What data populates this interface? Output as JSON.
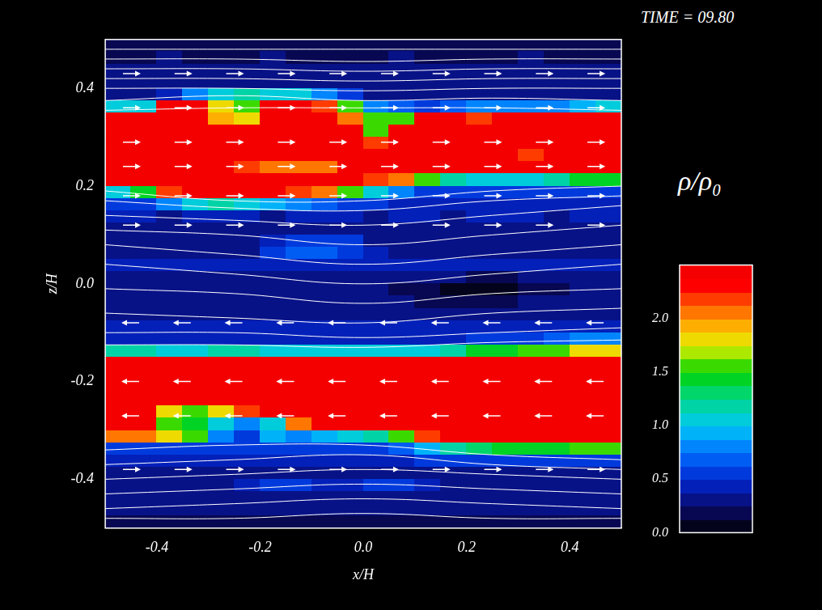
{
  "chart_data": {
    "type": "heatmap",
    "title": "TIME = 09.80",
    "x_label": "x/H",
    "y_label": "z/H",
    "xlim": [
      -0.5,
      0.5
    ],
    "ylim": [
      -0.5,
      0.5
    ],
    "xticks": [
      -0.4,
      -0.2,
      {
        "value": 0,
        "label": "0.0"
      },
      0.2,
      0.4
    ],
    "yticks": [
      -0.4,
      -0.2,
      {
        "value": 0,
        "label": "0.0"
      },
      0.2,
      0.4
    ],
    "grid": false,
    "colorbar": {
      "label": "ρ/ρ₀",
      "range": [
        0,
        2.5
      ],
      "ticks": [
        {
          "value": 0,
          "label": "0.0"
        },
        0.5,
        {
          "value": 1,
          "label": "1.0"
        },
        1.5,
        {
          "value": 2,
          "label": "2.0"
        }
      ]
    },
    "density": {
      "x": [
        -0.475,
        -0.425,
        -0.375,
        -0.325,
        -0.275,
        -0.225,
        -0.175,
        -0.125,
        -0.075,
        -0.025,
        0.025,
        0.075,
        0.125,
        0.175,
        0.225,
        0.275,
        0.325,
        0.375,
        0.425,
        0.475
      ],
      "z": [
        0.4875,
        0.4625,
        0.4375,
        0.4125,
        0.3875,
        0.3625,
        0.3375,
        0.3125,
        0.2875,
        0.2625,
        0.2375,
        0.2125,
        0.1875,
        0.1625,
        0.1375,
        0.1125,
        0.0875,
        0.0625,
        0.0375,
        0.0125,
        -0.0125,
        -0.0375,
        -0.0625,
        -0.0875,
        -0.1125,
        -0.1375,
        -0.1625,
        -0.1875,
        -0.2125,
        -0.2375,
        -0.2625,
        -0.2875,
        -0.3125,
        -0.3375,
        -0.3625,
        -0.3875,
        -0.4125,
        -0.4375,
        -0.4625,
        -0.4875
      ],
      "values": [
        [
          0.2,
          0.2,
          0.2,
          0.2,
          0.2,
          0.2,
          0.2,
          0.2,
          0.2,
          0.2,
          0.2,
          0.2,
          0.2,
          0.2,
          0.2,
          0.2,
          0.2,
          0.2,
          0.2,
          0.2
        ],
        [
          0.2,
          0.2,
          0.3,
          0.2,
          0.2,
          0.2,
          0.3,
          0.2,
          0.2,
          0.2,
          0.2,
          0.3,
          0.2,
          0.2,
          0.2,
          0.2,
          0.3,
          0.2,
          0.2,
          0.2
        ],
        [
          0.25,
          0.25,
          0.25,
          0.25,
          0.3,
          0.25,
          0.25,
          0.25,
          0.25,
          0.25,
          0.25,
          0.25,
          0.3,
          0.25,
          0.25,
          0.25,
          0.25,
          0.25,
          0.25,
          0.25
        ],
        [
          0.3,
          0.3,
          0.3,
          0.3,
          0.3,
          0.3,
          0.3,
          0.3,
          0.3,
          0.3,
          0.3,
          0.3,
          0.3,
          0.3,
          0.3,
          0.3,
          0.3,
          0.3,
          0.3,
          0.3
        ],
        [
          0.3,
          0.3,
          0.4,
          0.8,
          1.0,
          1.2,
          1.0,
          1.0,
          0.8,
          0.5,
          0.3,
          0.3,
          0.3,
          0.3,
          0.3,
          0.3,
          0.3,
          0.3,
          0.3,
          0.3
        ],
        [
          1.0,
          1.0,
          2.4,
          2.4,
          1.8,
          1.6,
          2.4,
          2.4,
          2.2,
          1.6,
          0.8,
          0.7,
          0.6,
          0.7,
          0.8,
          0.8,
          0.8,
          0.8,
          0.9,
          1.0
        ],
        [
          2.4,
          2.4,
          2.4,
          2.4,
          1.9,
          1.8,
          2.4,
          2.4,
          2.4,
          2.0,
          1.5,
          1.6,
          2.4,
          2.4,
          2.2,
          2.4,
          2.4,
          2.4,
          2.4,
          2.4
        ],
        [
          2.4,
          2.4,
          2.4,
          2.4,
          2.4,
          2.4,
          2.4,
          2.4,
          2.4,
          2.4,
          1.6,
          2.4,
          2.4,
          2.4,
          2.4,
          2.4,
          2.4,
          2.4,
          2.4,
          2.4
        ],
        [
          2.4,
          2.4,
          2.4,
          2.4,
          2.4,
          2.4,
          2.4,
          2.4,
          2.4,
          2.4,
          2.2,
          2.4,
          2.4,
          2.4,
          2.4,
          2.4,
          2.4,
          2.4,
          2.4,
          2.4
        ],
        [
          2.4,
          2.4,
          2.4,
          2.4,
          2.4,
          2.4,
          2.4,
          2.4,
          2.4,
          2.4,
          2.4,
          2.4,
          2.4,
          2.4,
          2.4,
          2.4,
          2.2,
          2.4,
          2.4,
          2.4
        ],
        [
          2.4,
          2.4,
          2.4,
          2.4,
          2.4,
          2.2,
          2.1,
          2.1,
          2.1,
          2.4,
          2.4,
          2.4,
          2.4,
          2.4,
          2.4,
          2.4,
          2.4,
          2.4,
          2.4,
          2.4
        ],
        [
          2.4,
          2.4,
          2.4,
          2.4,
          2.4,
          2.4,
          2.4,
          2.4,
          2.4,
          2.4,
          2.2,
          2.0,
          1.6,
          1.2,
          1.0,
          1.0,
          1.0,
          1.2,
          1.4,
          1.4
        ],
        [
          1.0,
          1.4,
          2.2,
          2.4,
          2.4,
          2.4,
          2.4,
          2.2,
          2.0,
          1.5,
          1.0,
          0.8,
          0.6,
          0.5,
          0.5,
          0.5,
          0.5,
          0.5,
          0.5,
          0.6
        ],
        [
          0.5,
          0.5,
          0.8,
          1.0,
          1.2,
          1.0,
          0.9,
          0.8,
          0.7,
          0.6,
          0.5,
          0.4,
          0.4,
          0.4,
          0.4,
          0.4,
          0.4,
          0.4,
          0.4,
          0.4
        ],
        [
          0.4,
          0.4,
          0.3,
          0.4,
          0.4,
          0.4,
          0.3,
          0.4,
          0.4,
          0.4,
          0.3,
          0.4,
          0.4,
          0.3,
          0.4,
          0.4,
          0.4,
          0.3,
          0.4,
          0.4
        ],
        [
          0.35,
          0.35,
          0.35,
          0.35,
          0.35,
          0.35,
          0.35,
          0.35,
          0.35,
          0.35,
          0.35,
          0.35,
          0.35,
          0.35,
          0.35,
          0.35,
          0.35,
          0.35,
          0.35,
          0.35
        ],
        [
          0.3,
          0.3,
          0.3,
          0.3,
          0.3,
          0.3,
          0.4,
          0.5,
          0.6,
          0.5,
          0.3,
          0.3,
          0.3,
          0.3,
          0.3,
          0.3,
          0.3,
          0.3,
          0.3,
          0.3
        ],
        [
          0.3,
          0.3,
          0.3,
          0.3,
          0.3,
          0.3,
          0.5,
          0.7,
          0.7,
          0.6,
          0.4,
          0.3,
          0.3,
          0.3,
          0.3,
          0.3,
          0.3,
          0.3,
          0.3,
          0.3
        ],
        [
          0.4,
          0.4,
          0.4,
          0.4,
          0.4,
          0.4,
          0.4,
          0.4,
          0.4,
          0.4,
          0.4,
          0.4,
          0.4,
          0.4,
          0.4,
          0.4,
          0.4,
          0.4,
          0.4,
          0.4
        ],
        [
          0.3,
          0.3,
          0.3,
          0.3,
          0.3,
          0.3,
          0.3,
          0.3,
          0.3,
          0.3,
          0.3,
          0.3,
          0.3,
          0.3,
          0.2,
          0.2,
          0.3,
          0.3,
          0.3,
          0.3
        ],
        [
          0.25,
          0.25,
          0.25,
          0.25,
          0.25,
          0.25,
          0.25,
          0.25,
          0.25,
          0.25,
          0.25,
          0.2,
          0.15,
          0.1,
          0.1,
          0.1,
          0.15,
          0.2,
          0.25,
          0.25
        ],
        [
          0.3,
          0.3,
          0.3,
          0.3,
          0.3,
          0.3,
          0.3,
          0.3,
          0.3,
          0.3,
          0.3,
          0.3,
          0.2,
          0.2,
          0.2,
          0.2,
          0.3,
          0.3,
          0.3,
          0.3
        ],
        [
          0.35,
          0.35,
          0.35,
          0.35,
          0.35,
          0.35,
          0.35,
          0.35,
          0.35,
          0.35,
          0.35,
          0.35,
          0.35,
          0.35,
          0.35,
          0.35,
          0.35,
          0.35,
          0.35,
          0.35
        ],
        [
          0.4,
          0.4,
          0.4,
          0.4,
          0.4,
          0.4,
          0.4,
          0.4,
          0.4,
          0.4,
          0.4,
          0.4,
          0.4,
          0.4,
          0.4,
          0.4,
          0.4,
          0.4,
          0.4,
          0.4
        ],
        [
          0.45,
          0.45,
          0.45,
          0.45,
          0.45,
          0.45,
          0.45,
          0.45,
          0.45,
          0.45,
          0.45,
          0.45,
          0.45,
          0.45,
          0.5,
          0.5,
          0.6,
          0.7,
          0.8,
          0.8
        ],
        [
          1.2,
          1.2,
          1.0,
          1.0,
          1.2,
          1.2,
          1.0,
          1.0,
          1.0,
          1.0,
          1.0,
          1.0,
          1.0,
          1.2,
          1.4,
          1.4,
          1.5,
          1.6,
          1.8,
          1.8
        ],
        [
          2.4,
          2.4,
          2.4,
          2.4,
          2.4,
          2.4,
          2.4,
          2.4,
          2.4,
          2.4,
          2.4,
          2.4,
          2.4,
          2.4,
          2.4,
          2.4,
          2.4,
          2.4,
          2.4,
          2.4
        ],
        [
          2.4,
          2.4,
          2.4,
          2.4,
          2.4,
          2.4,
          2.4,
          2.4,
          2.4,
          2.4,
          2.4,
          2.4,
          2.4,
          2.4,
          2.4,
          2.4,
          2.4,
          2.4,
          2.4,
          2.4
        ],
        [
          2.4,
          2.4,
          2.4,
          2.4,
          2.4,
          2.4,
          2.4,
          2.4,
          2.4,
          2.4,
          2.4,
          2.4,
          2.4,
          2.4,
          2.4,
          2.4,
          2.4,
          2.4,
          2.4,
          2.4
        ],
        [
          2.4,
          2.4,
          2.4,
          2.4,
          2.4,
          2.4,
          2.4,
          2.4,
          2.4,
          2.4,
          2.4,
          2.4,
          2.4,
          2.4,
          2.4,
          2.4,
          2.4,
          2.4,
          2.4,
          2.4
        ],
        [
          2.4,
          2.4,
          1.8,
          1.6,
          1.8,
          2.2,
          2.4,
          2.4,
          2.4,
          2.4,
          2.4,
          2.4,
          2.4,
          2.4,
          2.4,
          2.4,
          2.4,
          2.4,
          2.4,
          2.4
        ],
        [
          2.4,
          2.4,
          1.6,
          1.4,
          1.0,
          0.8,
          1.0,
          2.0,
          2.4,
          2.4,
          2.4,
          2.4,
          2.4,
          2.4,
          2.4,
          2.4,
          2.4,
          2.4,
          2.4,
          2.4
        ],
        [
          2.0,
          2.0,
          1.8,
          1.5,
          0.8,
          0.6,
          0.9,
          0.8,
          0.9,
          1.0,
          1.2,
          1.6,
          2.2,
          2.4,
          2.4,
          2.4,
          2.4,
          2.4,
          2.4,
          2.4
        ],
        [
          0.6,
          0.6,
          0.6,
          0.6,
          0.5,
          0.5,
          0.5,
          0.5,
          0.5,
          0.6,
          0.6,
          0.7,
          0.9,
          1.2,
          1.3,
          1.4,
          1.4,
          1.4,
          1.6,
          1.6
        ],
        [
          0.4,
          0.4,
          0.4,
          0.4,
          0.4,
          0.4,
          0.4,
          0.4,
          0.4,
          0.4,
          0.4,
          0.4,
          0.5,
          0.5,
          0.5,
          0.5,
          0.5,
          0.5,
          0.5,
          0.5
        ],
        [
          0.3,
          0.3,
          0.3,
          0.3,
          0.3,
          0.3,
          0.3,
          0.3,
          0.3,
          0.3,
          0.3,
          0.3,
          0.3,
          0.3,
          0.3,
          0.3,
          0.3,
          0.3,
          0.3,
          0.3
        ],
        [
          0.3,
          0.3,
          0.3,
          0.3,
          0.3,
          0.4,
          0.5,
          0.5,
          0.4,
          0.4,
          0.5,
          0.5,
          0.4,
          0.3,
          0.3,
          0.3,
          0.3,
          0.3,
          0.3,
          0.3
        ],
        [
          0.3,
          0.3,
          0.3,
          0.3,
          0.3,
          0.3,
          0.3,
          0.3,
          0.3,
          0.3,
          0.3,
          0.3,
          0.3,
          0.3,
          0.3,
          0.3,
          0.3,
          0.3,
          0.3,
          0.3
        ],
        [
          0.25,
          0.25,
          0.25,
          0.25,
          0.25,
          0.25,
          0.25,
          0.25,
          0.25,
          0.25,
          0.25,
          0.25,
          0.25,
          0.25,
          0.25,
          0.25,
          0.25,
          0.25,
          0.25,
          0.25
        ],
        [
          0.2,
          0.2,
          0.2,
          0.2,
          0.2,
          0.2,
          0.2,
          0.2,
          0.2,
          0.2,
          0.2,
          0.2,
          0.2,
          0.2,
          0.2,
          0.2,
          0.2,
          0.2,
          0.2,
          0.2
        ]
      ]
    },
    "field_lines": {
      "x": [
        -0.5,
        -0.25,
        0,
        0.25,
        0.5
      ],
      "z": [
        [
          0.48,
          0.48,
          0.48,
          0.48,
          0.48
        ],
        [
          0.46,
          0.46,
          0.455,
          0.46,
          0.46
        ],
        [
          0.44,
          0.44,
          0.435,
          0.44,
          0.44
        ],
        [
          0.42,
          0.42,
          0.415,
          0.42,
          0.42
        ],
        [
          0.4,
          0.4,
          0.395,
          0.4,
          0.4
        ],
        [
          0.375,
          0.385,
          0.375,
          0.38,
          0.375
        ],
        [
          0.355,
          0.36,
          0.36,
          0.36,
          0.355
        ],
        [
          0.19,
          0.17,
          0.17,
          0.19,
          0.2
        ],
        [
          0.17,
          0.155,
          0.15,
          0.17,
          0.18
        ],
        [
          0.14,
          0.13,
          0.12,
          0.14,
          0.16
        ],
        [
          0.11,
          0.1,
          0.08,
          0.1,
          0.12
        ],
        [
          0.08,
          0.06,
          0.04,
          0.06,
          0.08
        ],
        [
          0.04,
          0.02,
          0.0,
          0.02,
          0.04
        ],
        [
          -0.01,
          -0.02,
          -0.04,
          -0.02,
          -0.01
        ],
        [
          -0.06,
          -0.07,
          -0.08,
          -0.06,
          -0.05
        ],
        [
          -0.1,
          -0.1,
          -0.11,
          -0.1,
          -0.09
        ],
        [
          -0.125,
          -0.125,
          -0.13,
          -0.12,
          -0.115
        ],
        [
          -0.34,
          -0.33,
          -0.33,
          -0.35,
          -0.36
        ],
        [
          -0.37,
          -0.36,
          -0.35,
          -0.37,
          -0.38
        ],
        [
          -0.4,
          -0.39,
          -0.38,
          -0.39,
          -0.4
        ],
        [
          -0.43,
          -0.42,
          -0.41,
          -0.42,
          -0.43
        ],
        [
          -0.46,
          -0.45,
          -0.44,
          -0.45,
          -0.46
        ],
        [
          -0.48,
          -0.48,
          -0.47,
          -0.48,
          -0.48
        ]
      ]
    },
    "velocity_arrows": {
      "z": [
        0.43,
        0.36,
        0.29,
        0.24,
        0.18,
        0.12,
        -0.08,
        -0.2,
        -0.27,
        -0.38
      ],
      "direction": [
        "right",
        "right",
        "right",
        "right",
        "right",
        "right",
        "left",
        "left",
        "left",
        "right"
      ]
    }
  }
}
